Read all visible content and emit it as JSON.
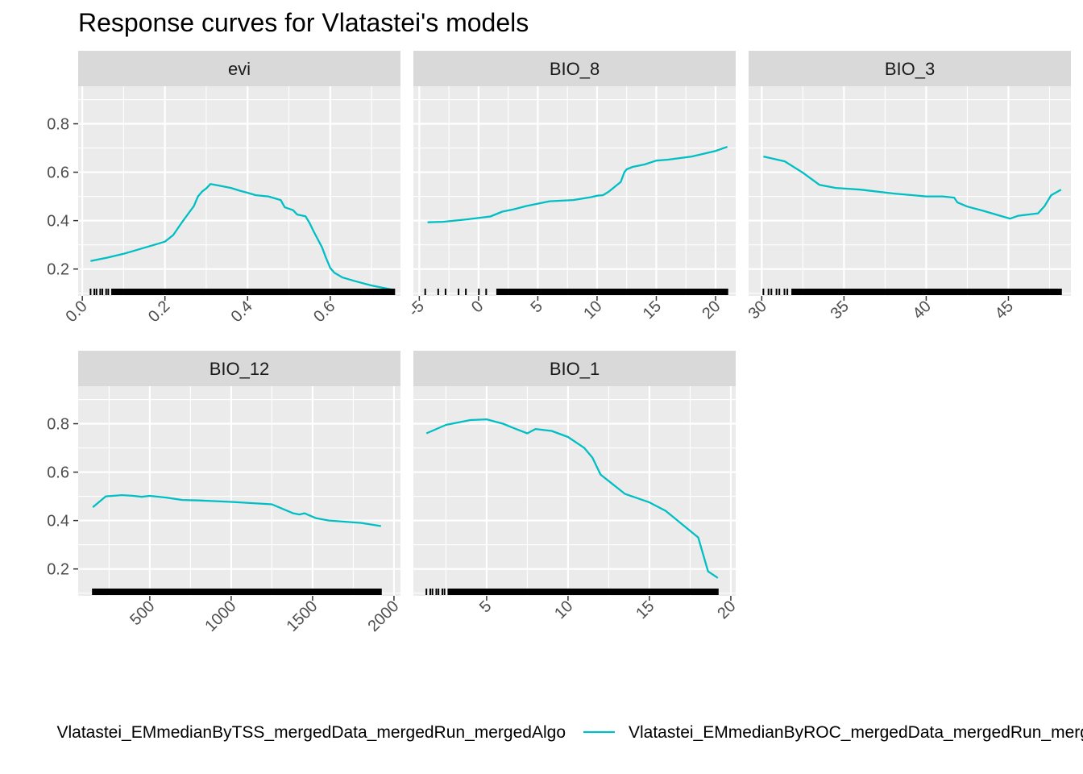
{
  "chart_data": {
    "type": "line",
    "title": "Response curves for Vlatastei's models",
    "xlabel": "",
    "ylabel": "",
    "grid": true,
    "legend_position": "bottom",
    "legend": [
      {
        "name": "Vlatastei_EMmedianByTSS_mergedData_mergedRun_mergedAlgo",
        "color": "#F8766D"
      },
      {
        "name": "Vlatastei_EMmedianByROC_mergedData_mergedRun_mergedAlgo",
        "color": "#00BFC4"
      }
    ],
    "shared_y": {
      "ticks": [
        0.2,
        0.4,
        0.6,
        0.8
      ],
      "ylim": [
        0.089,
        0.955
      ]
    },
    "panels": [
      {
        "name": "evi",
        "xlim": [
          -0.01,
          0.77
        ],
        "xticks": [
          0.0,
          0.2,
          0.4,
          0.6
        ],
        "xtick_labels": [
          "0.0",
          "0.2",
          "0.4",
          "0.6"
        ],
        "series": [
          {
            "name": "Vlatastei_EMmedianByROC_mergedData_mergedRun_mergedAlgo",
            "color": "#00BFC4",
            "x": [
              0.02,
              0.06,
              0.1,
              0.14,
              0.18,
              0.2,
              0.22,
              0.24,
              0.26,
              0.27,
              0.28,
              0.29,
              0.3,
              0.31,
              0.33,
              0.36,
              0.38,
              0.4,
              0.42,
              0.45,
              0.48,
              0.49,
              0.51,
              0.52,
              0.54,
              0.55,
              0.56,
              0.58,
              0.59,
              0.6,
              0.61,
              0.63,
              0.66,
              0.7,
              0.755
            ],
            "y": [
              0.233,
              0.247,
              0.263,
              0.283,
              0.303,
              0.313,
              0.34,
              0.39,
              0.437,
              0.46,
              0.5,
              0.52,
              0.533,
              0.551,
              0.545,
              0.535,
              0.524,
              0.515,
              0.505,
              0.5,
              0.485,
              0.455,
              0.443,
              0.425,
              0.418,
              0.39,
              0.355,
              0.29,
              0.245,
              0.205,
              0.185,
              0.165,
              0.15,
              0.132,
              0.113
            ]
          }
        ],
        "rug": {
          "range": [
            0.02,
            0.755
          ],
          "dense_from": 0.07
        }
      },
      {
        "name": "BIO_8",
        "xlim": [
          -5.5,
          21.7
        ],
        "xticks": [
          -5,
          0,
          5,
          10,
          15,
          20
        ],
        "xtick_labels": [
          "-5",
          "0",
          "5",
          "10",
          "15",
          "20"
        ],
        "series": [
          {
            "name": "Vlatastei_EMmedianByROC_mergedData_mergedRun_mergedAlgo",
            "color": "#00BFC4",
            "x": [
              -4.3,
              -3.0,
              -1.0,
              1.0,
              2.0,
              3.0,
              4.0,
              5.0,
              6.0,
              8.0,
              9.5,
              10.0,
              10.5,
              11.0,
              12.0,
              12.3,
              12.5,
              13.0,
              14.0,
              15.0,
              16.0,
              18.0,
              20.0,
              21.0
            ],
            "y": [
              0.393,
              0.395,
              0.405,
              0.417,
              0.437,
              0.447,
              0.46,
              0.47,
              0.48,
              0.485,
              0.497,
              0.503,
              0.505,
              0.52,
              0.56,
              0.6,
              0.612,
              0.622,
              0.632,
              0.648,
              0.652,
              0.665,
              0.688,
              0.705
            ]
          }
        ],
        "rug": {
          "range": [
            -4.5,
            21.0
          ],
          "dense_from": 1.5
        }
      },
      {
        "name": "BIO_3",
        "xlim": [
          29.2,
          48.8
        ],
        "xticks": [
          30,
          35,
          40,
          45
        ],
        "xtick_labels": [
          "30",
          "35",
          "40",
          "45"
        ],
        "series": [
          {
            "name": "Vlatastei_EMmedianByROC_mergedData_mergedRun_mergedAlgo",
            "color": "#00BFC4",
            "x": [
              30.1,
              31.4,
              32.5,
              33.5,
              34.5,
              36.0,
              38.0,
              40.0,
              41.0,
              41.7,
              41.9,
              42.5,
              43.5,
              44.5,
              45.1,
              45.6,
              46.2,
              46.8,
              47.2,
              47.6,
              48.2
            ],
            "y": [
              0.665,
              0.645,
              0.598,
              0.548,
              0.535,
              0.528,
              0.512,
              0.5,
              0.5,
              0.495,
              0.475,
              0.458,
              0.44,
              0.42,
              0.408,
              0.42,
              0.425,
              0.43,
              0.46,
              0.505,
              0.528
            ]
          }
        ],
        "rug": {
          "range": [
            30.1,
            48.2
          ],
          "dense_from": 31.8
        }
      },
      {
        "name": "BIO_12",
        "xlim": [
          60,
          2040
        ],
        "xticks": [
          500,
          1000,
          1500,
          2000
        ],
        "xtick_labels": [
          "500",
          "1000",
          "1500",
          "2000"
        ],
        "series": [
          {
            "name": "Vlatastei_EMmedianByROC_mergedData_mergedRun_mergedAlgo",
            "color": "#00BFC4",
            "x": [
              150,
              230,
              330,
              400,
              450,
              500,
              600,
              700,
              800,
              1000,
              1250,
              1380,
              1420,
              1450,
              1520,
              1600,
              1800,
              1920
            ],
            "y": [
              0.455,
              0.5,
              0.505,
              0.502,
              0.498,
              0.502,
              0.495,
              0.485,
              0.483,
              0.477,
              0.467,
              0.43,
              0.425,
              0.43,
              0.41,
              0.4,
              0.39,
              0.377
            ]
          }
        ],
        "rug": {
          "range": [
            150,
            1920
          ],
          "dense_from": 150
        }
      },
      {
        "name": "BIO_1",
        "xlim": [
          0.5,
          20.3
        ],
        "xticks": [
          5,
          10,
          15,
          20
        ],
        "xtick_labels": [
          "5",
          "10",
          "15",
          "20"
        ],
        "series": [
          {
            "name": "Vlatastei_EMmedianByROC_mergedData_mergedRun_mergedAlgo",
            "color": "#00BFC4",
            "x": [
              1.3,
              2.5,
              4.0,
              5.0,
              6.0,
              6.8,
              7.5,
              8.0,
              9.0,
              10.0,
              11.0,
              11.5,
              12.0,
              13.5,
              15.0,
              16.0,
              17.0,
              18.0,
              18.3,
              18.6,
              19.2
            ],
            "y": [
              0.76,
              0.795,
              0.815,
              0.818,
              0.8,
              0.778,
              0.76,
              0.778,
              0.77,
              0.745,
              0.7,
              0.66,
              0.59,
              0.51,
              0.475,
              0.44,
              0.385,
              0.33,
              0.26,
              0.19,
              0.163
            ]
          }
        ],
        "rug": {
          "range": [
            1.3,
            19.2
          ],
          "dense_from": 2.6
        }
      }
    ]
  }
}
